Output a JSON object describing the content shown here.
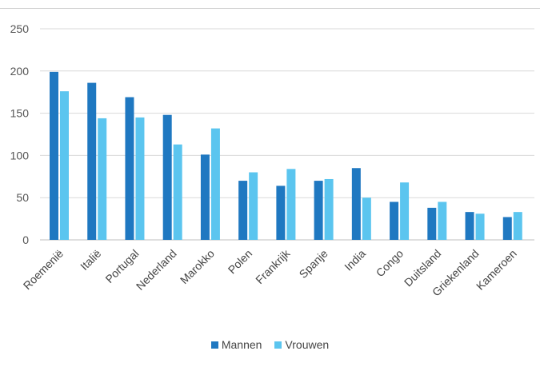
{
  "chart_data": {
    "type": "bar",
    "categories": [
      "Roemenië",
      "Italië",
      "Portugal",
      "Nederland",
      "Marokko",
      "Polen",
      "Frankrijk",
      "Spanje",
      "India",
      "Congo",
      "Duitsland",
      "Griekenland",
      "Kameroen"
    ],
    "series": [
      {
        "name": "Mannen",
        "color": "#1f78c1",
        "values": [
          199,
          186,
          169,
          148,
          101,
          70,
          64,
          70,
          85,
          45,
          38,
          33,
          27
        ]
      },
      {
        "name": "Vrouwen",
        "color": "#5bc5ef",
        "values": [
          176,
          144,
          145,
          113,
          132,
          80,
          84,
          72,
          50,
          68,
          45,
          31,
          33
        ]
      }
    ],
    "yticks": [
      0,
      50,
      100,
      150,
      200,
      250
    ],
    "ylim": [
      0,
      250
    ],
    "grid": true,
    "legend_position": "bottom",
    "title": "",
    "xlabel": "",
    "ylabel": ""
  }
}
